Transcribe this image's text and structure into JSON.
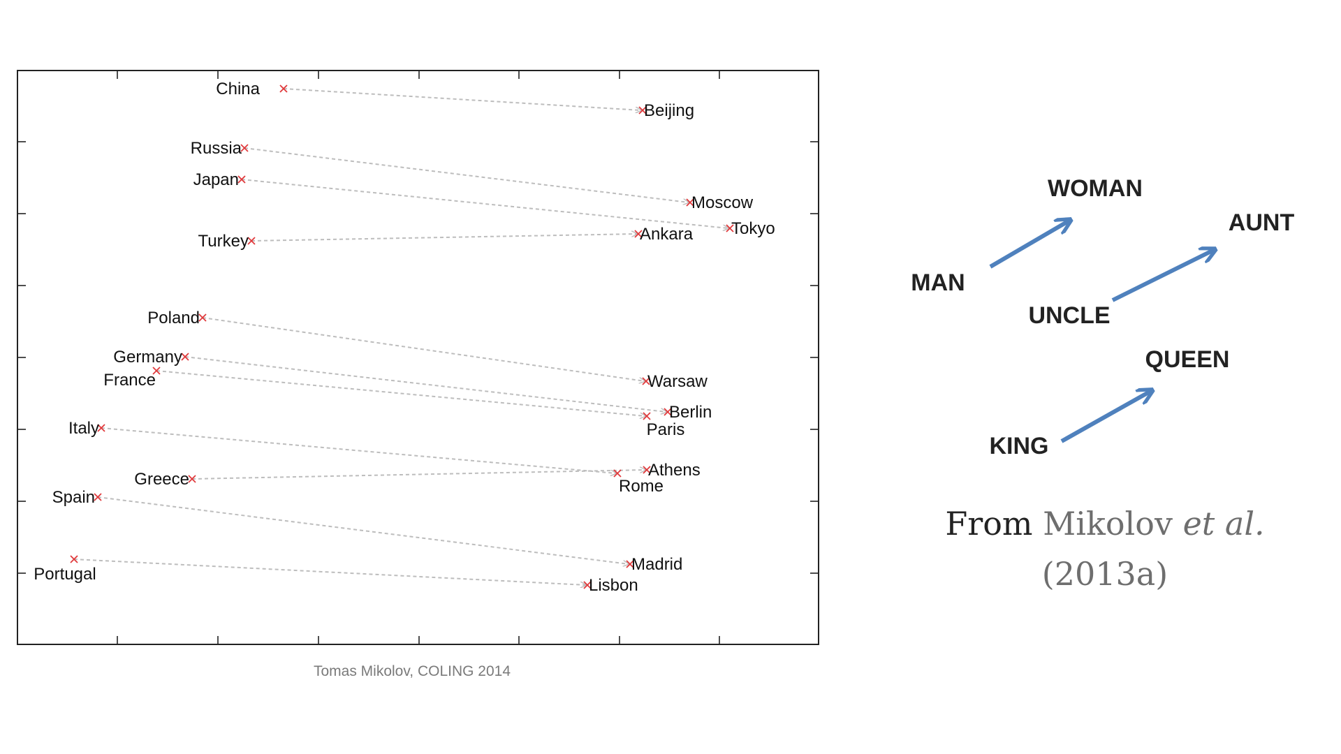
{
  "embedding_plot": {
    "credit": "Tomas Mikolov, COLING 2014",
    "pairs": [
      {
        "country": "China",
        "capital": "Beijing"
      },
      {
        "country": "Russia",
        "capital": "Moscow"
      },
      {
        "country": "Japan",
        "capital": "Tokyo"
      },
      {
        "country": "Turkey",
        "capital": "Ankara"
      },
      {
        "country": "Poland",
        "capital": "Warsaw"
      },
      {
        "country": "Germany",
        "capital": "Berlin"
      },
      {
        "country": "France",
        "capital": "Paris"
      },
      {
        "country": "Italy",
        "capital": "Rome"
      },
      {
        "country": "Greece",
        "capital": "Athens"
      },
      {
        "country": "Spain",
        "capital": "Madrid"
      },
      {
        "country": "Portugal",
        "capital": "Lisbon"
      }
    ],
    "colors": {
      "marker": "#e0393b",
      "arrow": "#bdbdbd",
      "frame": "#222222",
      "label": "#111111",
      "credit": "#7a7a7a"
    }
  },
  "analogy": {
    "words": [
      "MAN",
      "WOMAN",
      "UNCLE",
      "AUNT",
      "KING",
      "QUEEN"
    ],
    "relations": [
      {
        "from": "MAN",
        "to": "WOMAN"
      },
      {
        "from": "UNCLE",
        "to": "AUNT"
      },
      {
        "from": "KING",
        "to": "QUEEN"
      }
    ],
    "arrow_color": "#4f81bd",
    "text_color": "#222222",
    "caption": {
      "prefix": "From",
      "author": "Mikolov",
      "etal": "et al.",
      "year": "(2013a)"
    }
  }
}
